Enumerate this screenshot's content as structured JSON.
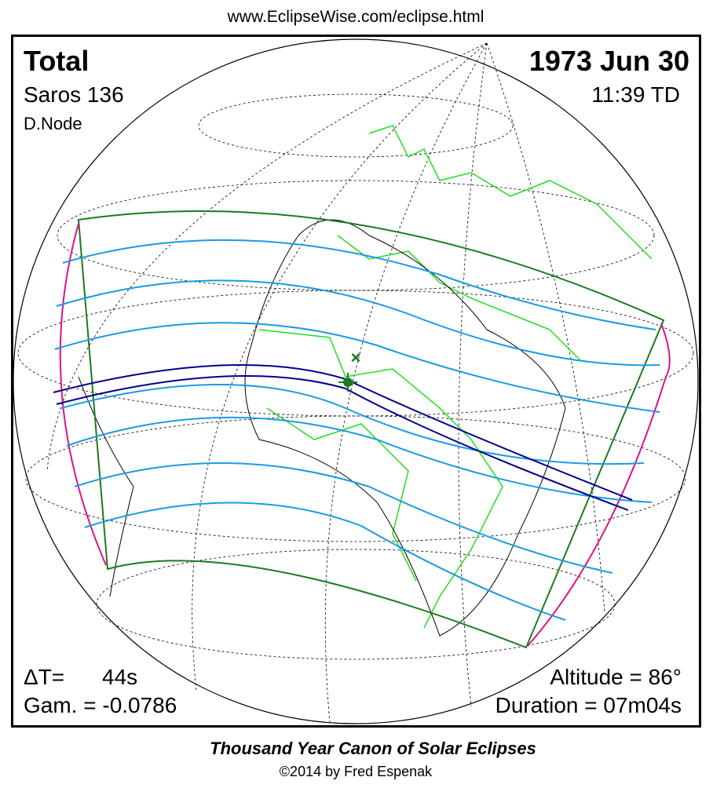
{
  "header": {
    "url": "www.EclipseWise.com/eclipse.html"
  },
  "panel": {
    "eclipse_type": "Total",
    "date": "1973 Jun 30",
    "saros": "Saros 136",
    "time": "11:39 TD",
    "node": "D.Node",
    "delta_t_label": "ΔT=",
    "delta_t_value": "44s",
    "gamma": "Gam. = -0.0786",
    "altitude": "Altitude = 86°",
    "duration": "Duration = 07m04s"
  },
  "footer": {
    "title": "Thousand Year Canon of Solar Eclipses",
    "copyright": "©2014 by Fred Espenak"
  }
}
